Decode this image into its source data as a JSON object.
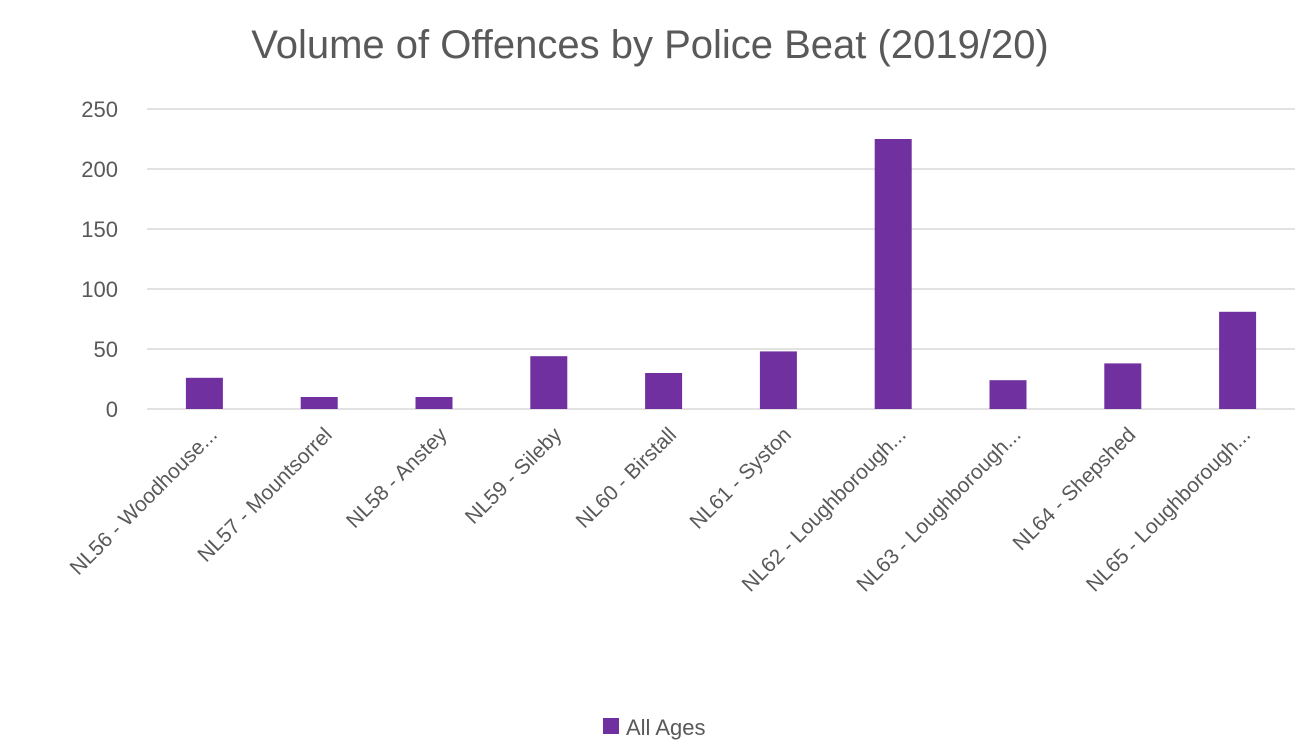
{
  "chart_data": {
    "type": "bar",
    "title": "Volume of Offences by Police Beat (2019/20)",
    "xlabel": "",
    "ylabel": "",
    "ylim": [
      0,
      250
    ],
    "yticks": [
      0,
      50,
      100,
      150,
      200,
      250
    ],
    "categories": [
      "NL56 - Woodhouse...",
      "NL57 - Mountsorrel",
      "NL58 - Anstey",
      "NL59 - Sileby",
      "NL60 - Birstall",
      "NL61 - Syston",
      "NL62 - Loughborough...",
      "NL63 - Loughborough...",
      "NL64 - Shepshed",
      "NL65 - Loughborough..."
    ],
    "series": [
      {
        "name": "All Ages",
        "color": "#7030a0",
        "values": [
          26,
          10,
          10,
          44,
          30,
          48,
          225,
          24,
          38,
          81
        ]
      }
    ],
    "grid": true,
    "legend": "bottom"
  }
}
